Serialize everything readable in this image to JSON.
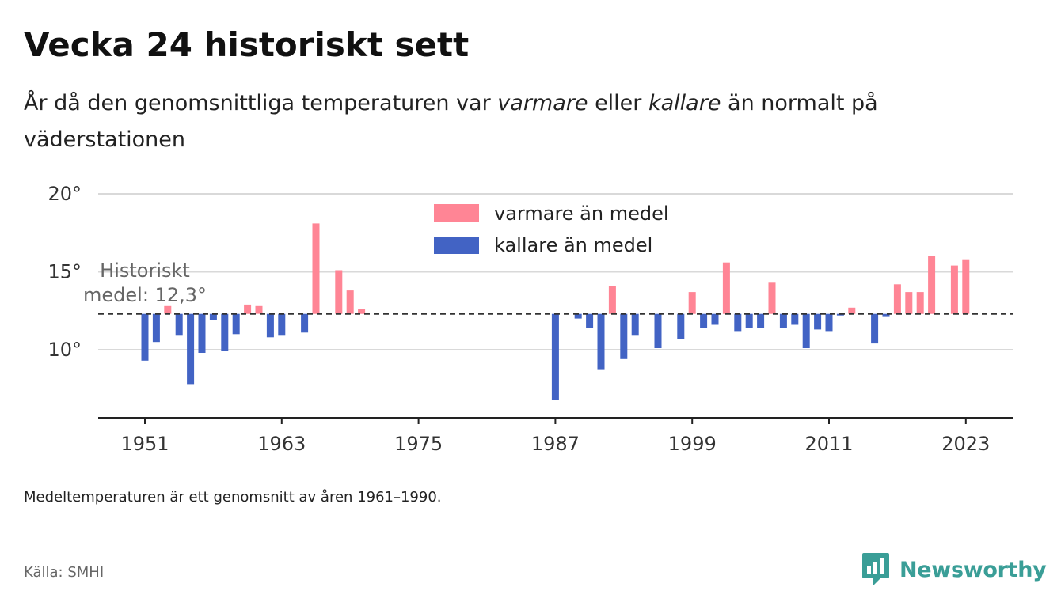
{
  "title": "Vecka 24 historiskt sett",
  "subtitle": {
    "part1": "År då den genomsnittliga temperaturen var ",
    "warm_word": "varmare",
    "part2": " eller ",
    "cold_word": "kallare",
    "part3": " än normalt på väderstationen"
  },
  "note": "Medeltemperaturen är ett genomsnitt av åren 1961–1990.",
  "source": "Källa: SMHI",
  "brand": {
    "name": "Newsworthy",
    "icon": "newsworthy-logo-icon",
    "color": "#3a9e97"
  },
  "chart_data": {
    "type": "bar",
    "title": "Vecka 24 historiskt sett",
    "baseline": 12.3,
    "baseline_label_line1": "Historiskt",
    "baseline_label_line2": "medel: 12,3°",
    "ylim": [
      5.5,
      20
    ],
    "y_ticks": [
      10,
      15,
      20
    ],
    "y_tick_labels": [
      "10°",
      "15°",
      "20°"
    ],
    "xlim": [
      1946,
      2027
    ],
    "x_ticks": [
      1951,
      1963,
      1975,
      1987,
      1999,
      2011,
      2023
    ],
    "x_tick_labels": [
      "1951",
      "1963",
      "1975",
      "1987",
      "1999",
      "2011",
      "2023"
    ],
    "legend_position": "top-center",
    "colors": {
      "warm": "#ff8595",
      "cold": "#4263c4"
    },
    "legend": [
      {
        "key": "warm",
        "label": "varmare än medel"
      },
      {
        "key": "cold",
        "label": "kallare än medel"
      }
    ],
    "data": [
      {
        "year": 1951,
        "value": 9.3
      },
      {
        "year": 1952,
        "value": 10.5
      },
      {
        "year": 1953,
        "value": 12.8
      },
      {
        "year": 1954,
        "value": 10.9
      },
      {
        "year": 1955,
        "value": 7.8
      },
      {
        "year": 1956,
        "value": 9.8
      },
      {
        "year": 1957,
        "value": 11.9
      },
      {
        "year": 1958,
        "value": 9.9
      },
      {
        "year": 1959,
        "value": 11.0
      },
      {
        "year": 1960,
        "value": 12.9
      },
      {
        "year": 1961,
        "value": 12.8
      },
      {
        "year": 1962,
        "value": 10.8
      },
      {
        "year": 1963,
        "value": 10.9
      },
      {
        "year": 1965,
        "value": 11.1
      },
      {
        "year": 1966,
        "value": 18.1
      },
      {
        "year": 1968,
        "value": 15.1
      },
      {
        "year": 1969,
        "value": 13.8
      },
      {
        "year": 1970,
        "value": 12.6
      },
      {
        "year": 1987,
        "value": 6.8
      },
      {
        "year": 1989,
        "value": 12.0
      },
      {
        "year": 1990,
        "value": 11.4
      },
      {
        "year": 1991,
        "value": 8.7
      },
      {
        "year": 1992,
        "value": 14.1
      },
      {
        "year": 1993,
        "value": 9.4
      },
      {
        "year": 1994,
        "value": 10.9
      },
      {
        "year": 1996,
        "value": 10.1
      },
      {
        "year": 1998,
        "value": 10.7
      },
      {
        "year": 1999,
        "value": 13.7
      },
      {
        "year": 2000,
        "value": 11.4
      },
      {
        "year": 2001,
        "value": 11.6
      },
      {
        "year": 2002,
        "value": 15.6
      },
      {
        "year": 2003,
        "value": 11.2
      },
      {
        "year": 2004,
        "value": 11.4
      },
      {
        "year": 2005,
        "value": 11.4
      },
      {
        "year": 2006,
        "value": 14.3
      },
      {
        "year": 2007,
        "value": 11.4
      },
      {
        "year": 2008,
        "value": 11.6
      },
      {
        "year": 2009,
        "value": 10.1
      },
      {
        "year": 2010,
        "value": 11.3
      },
      {
        "year": 2011,
        "value": 11.2
      },
      {
        "year": 2012,
        "value": 12.2
      },
      {
        "year": 2013,
        "value": 12.7
      },
      {
        "year": 2015,
        "value": 10.4
      },
      {
        "year": 2016,
        "value": 12.1
      },
      {
        "year": 2017,
        "value": 14.2
      },
      {
        "year": 2018,
        "value": 13.7
      },
      {
        "year": 2019,
        "value": 13.7
      },
      {
        "year": 2020,
        "value": 16.0
      },
      {
        "year": 2022,
        "value": 15.4
      },
      {
        "year": 2023,
        "value": 15.8
      }
    ]
  }
}
